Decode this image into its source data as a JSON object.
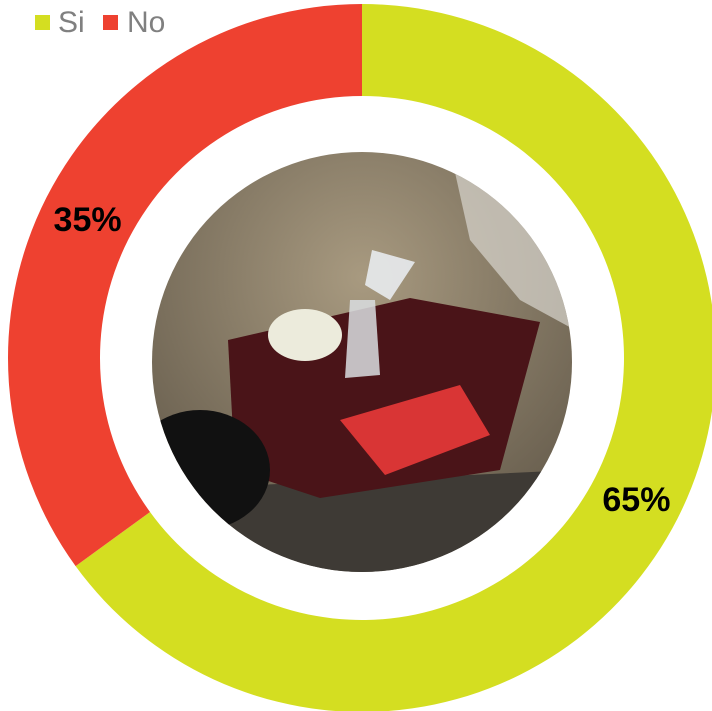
{
  "chart_data": {
    "type": "donut",
    "categories": [
      "Si",
      "No"
    ],
    "values": [
      65,
      35
    ],
    "value_labels": [
      "65%",
      "35%"
    ],
    "colors": [
      "#d4de21",
      "#ee4130"
    ],
    "legend": "top-left"
  }
}
